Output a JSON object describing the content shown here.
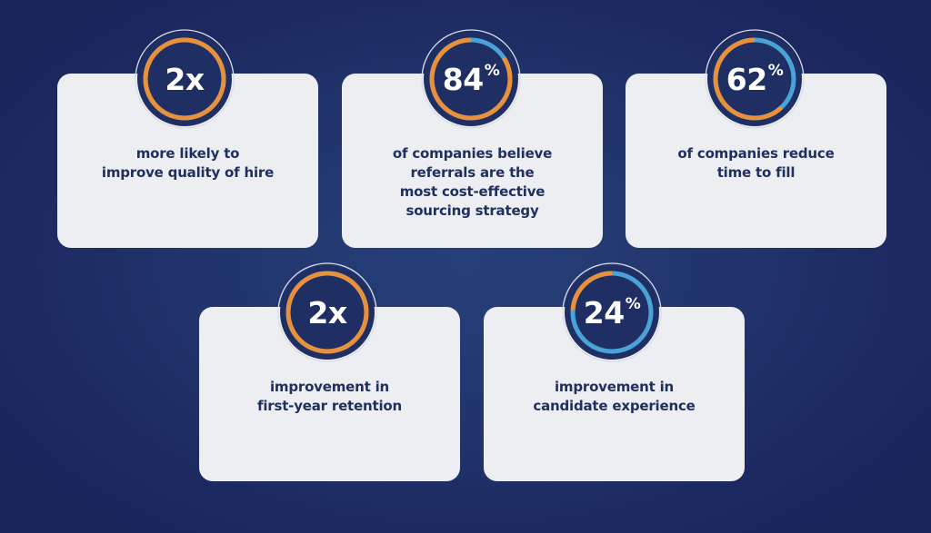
{
  "colors": {
    "background": "#1f2f66",
    "card": "#eceef2",
    "circle": "#1f2f63",
    "orange": "#e8913a",
    "blue": "#4aa3d8",
    "text_dark": "#1f2f5e",
    "text_light": "#ffffff"
  },
  "stats": [
    {
      "value": "2x",
      "suffix": "",
      "orange_pct": 100,
      "description": "more likely to\nimprove quality of hire"
    },
    {
      "value": "84",
      "suffix": "%",
      "orange_pct": 84,
      "description": "of companies believe\nreferrals are the\nmost cost-effective\nsourcing strategy"
    },
    {
      "value": "62",
      "suffix": "%",
      "orange_pct": 62,
      "description": "of companies reduce\ntime to fill"
    },
    {
      "value": "2x",
      "suffix": "",
      "orange_pct": 100,
      "description": "improvement in\nfirst-year retention"
    },
    {
      "value": "24",
      "suffix": "%",
      "orange_pct": 24,
      "description": "improvement in\ncandidate experience"
    }
  ]
}
